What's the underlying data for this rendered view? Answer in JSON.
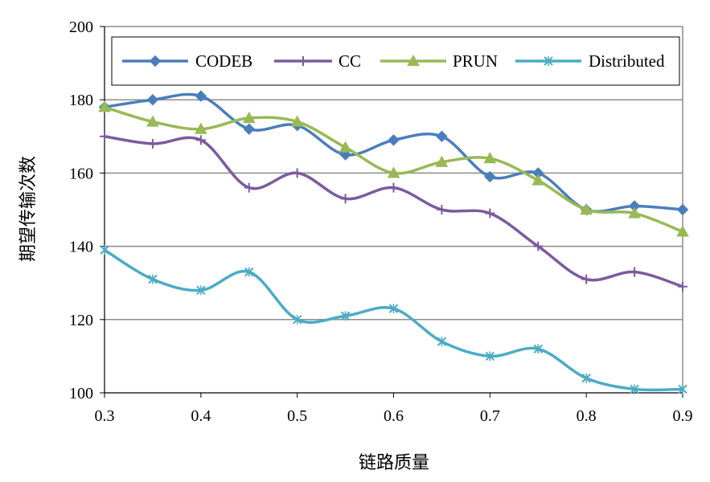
{
  "chart_data": {
    "type": "line",
    "title": "",
    "xlabel": "链路质量",
    "ylabel": "期望传输次数",
    "x": [
      0.3,
      0.35,
      0.4,
      0.45,
      0.5,
      0.55,
      0.6,
      0.65,
      0.7,
      0.75,
      0.8,
      0.85,
      0.9
    ],
    "xlim": [
      0.3,
      0.9
    ],
    "ylim": [
      100,
      200
    ],
    "xticks": [
      "0.3",
      "0.4",
      "0.5",
      "0.6",
      "0.7",
      "0.8",
      "0.9"
    ],
    "yticks": [
      "100",
      "120",
      "140",
      "160",
      "180",
      "200"
    ],
    "grid": "horizontal",
    "legend_position": "top, inside plot area",
    "series": [
      {
        "name": "CODEB",
        "color": "#4a7ebb",
        "marker": "diamond",
        "values": [
          178,
          180,
          181,
          172,
          173,
          165,
          169,
          170,
          159,
          160,
          150,
          151,
          150
        ]
      },
      {
        "name": "CC",
        "color": "#7d5a9e",
        "marker": "plus",
        "values": [
          170,
          168,
          169,
          156,
          160,
          153,
          156,
          150,
          149,
          140,
          131,
          133,
          129
        ]
      },
      {
        "name": "PRUN",
        "color": "#98b954",
        "marker": "triangle",
        "values": [
          178,
          174,
          172,
          175,
          174,
          167,
          160,
          163,
          164,
          158,
          150,
          149,
          144
        ]
      },
      {
        "name": "Distributed",
        "color": "#4aacc5",
        "marker": "x",
        "values": [
          139,
          131,
          128,
          133,
          120,
          121,
          123,
          114,
          110,
          112,
          104,
          101,
          101
        ]
      }
    ]
  }
}
